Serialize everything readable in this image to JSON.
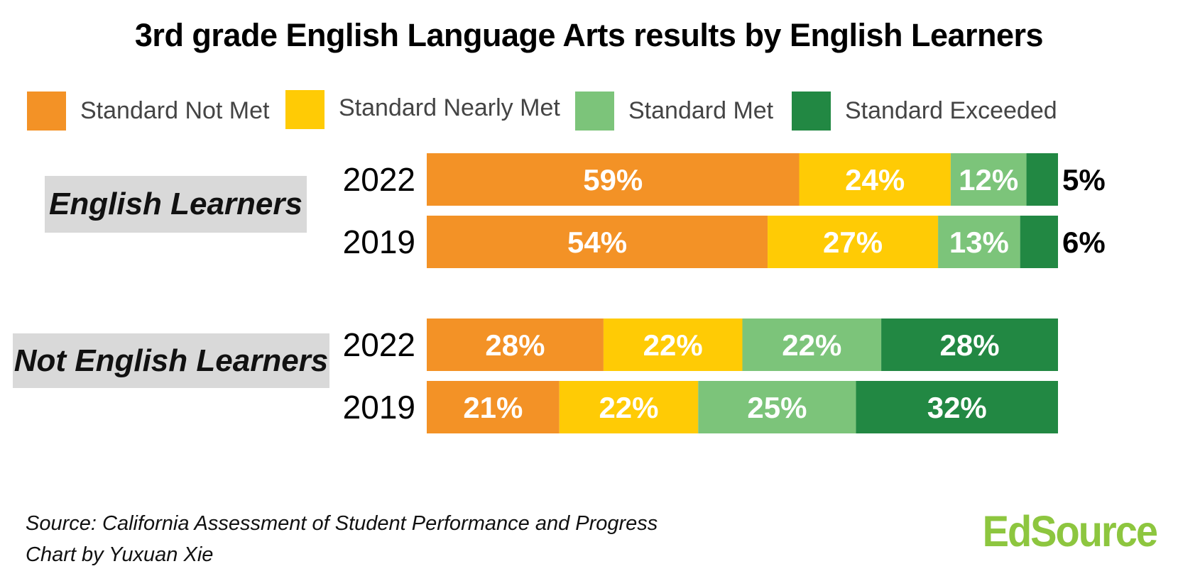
{
  "title": "3rd grade English Language Arts results by English Learners",
  "legend": [
    {
      "label": "Standard Not Met",
      "color": "#f39226"
    },
    {
      "label": "Standard Nearly Met",
      "color": "#ffcb05"
    },
    {
      "label": "Standard Met",
      "color": "#7cc47a"
    },
    {
      "label": "Standard Exceeded",
      "color": "#228843"
    }
  ],
  "groups": {
    "english_learners": "English Learners",
    "not_english_learners": "Not English Learners"
  },
  "chart_data": {
    "type": "bar",
    "orientation": "horizontal",
    "stacked": true,
    "percent_stacked": true,
    "title": "3rd grade English Language Arts results by English Learners",
    "legend_position": "top",
    "grid": false,
    "xlim": [
      0,
      100
    ],
    "series_names": [
      "Standard Not Met",
      "Standard Nearly Met",
      "Standard Met",
      "Standard Exceeded"
    ],
    "colors": [
      "#f39226",
      "#ffcb05",
      "#7cc47a",
      "#228843"
    ],
    "rows": [
      {
        "group": "English Learners",
        "year": "2022",
        "values": [
          59,
          24,
          12,
          5
        ],
        "labels": [
          "59%",
          "24%",
          "12%",
          "5%"
        ]
      },
      {
        "group": "English Learners",
        "year": "2019",
        "values": [
          54,
          27,
          13,
          6
        ],
        "labels": [
          "54%",
          "27%",
          "13%",
          "6%"
        ]
      },
      {
        "group": "Not English Learners",
        "year": "2022",
        "values": [
          28,
          22,
          22,
          28
        ],
        "labels": [
          "28%",
          "22%",
          "22%",
          "28%"
        ]
      },
      {
        "group": "Not English Learners",
        "year": "2019",
        "values": [
          21,
          22,
          25,
          32
        ],
        "labels": [
          "21%",
          "22%",
          "25%",
          "32%"
        ]
      }
    ]
  },
  "source": {
    "line1": "Source: California Assessment of Student Performance and Progress",
    "line2": "Chart by Yuxuan Xie"
  },
  "logo": "EdSource"
}
